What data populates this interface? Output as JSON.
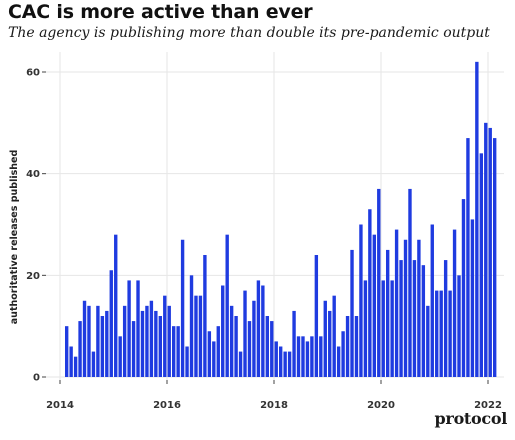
{
  "title": "CAC is more active than ever",
  "subtitle": "The agency is publishing more than double its pre-pandemic output",
  "brand": "protocol",
  "chart_data": {
    "type": "bar",
    "title": "CAC is more active than ever",
    "subtitle": "The agency is publishing more than double its pre-pandemic output",
    "xlabel": "",
    "ylabel": "authoritative releases published",
    "bar_color": "#1f3be0",
    "grid": true,
    "x_range": [
      2014,
      2022
    ],
    "ylim": [
      0,
      63
    ],
    "x_ticks": [
      2014,
      2016,
      2018,
      2020,
      2022
    ],
    "x_tick_labels": [
      "2014",
      "2016",
      "2018",
      "2020",
      "2022"
    ],
    "y_ticks": [
      0,
      20,
      40,
      60
    ],
    "y_tick_labels": [
      "0",
      "20",
      "40",
      "60"
    ],
    "series": [
      {
        "start": "2014-02",
        "frequency": "monthly",
        "values": [
          10,
          6,
          4,
          11,
          15,
          14,
          5,
          14,
          12,
          13,
          21,
          28,
          8,
          14,
          19,
          11,
          19,
          13,
          14,
          15,
          13,
          12,
          16,
          14,
          10,
          10,
          27,
          6,
          20,
          16,
          16,
          24,
          9,
          7,
          10,
          18,
          28,
          14,
          12,
          5,
          17,
          11,
          15,
          19,
          18,
          12,
          11,
          7,
          6,
          5,
          5,
          13,
          8,
          8,
          7,
          8,
          24,
          8,
          15,
          13,
          16,
          6,
          9,
          12,
          25,
          12,
          30,
          19,
          33,
          28,
          37,
          19,
          25,
          19,
          29,
          23,
          27,
          37,
          23,
          27,
          22,
          14,
          30,
          17,
          17,
          23,
          17,
          29,
          20,
          35,
          47,
          31,
          62,
          44,
          50,
          49,
          47
        ]
      }
    ]
  }
}
